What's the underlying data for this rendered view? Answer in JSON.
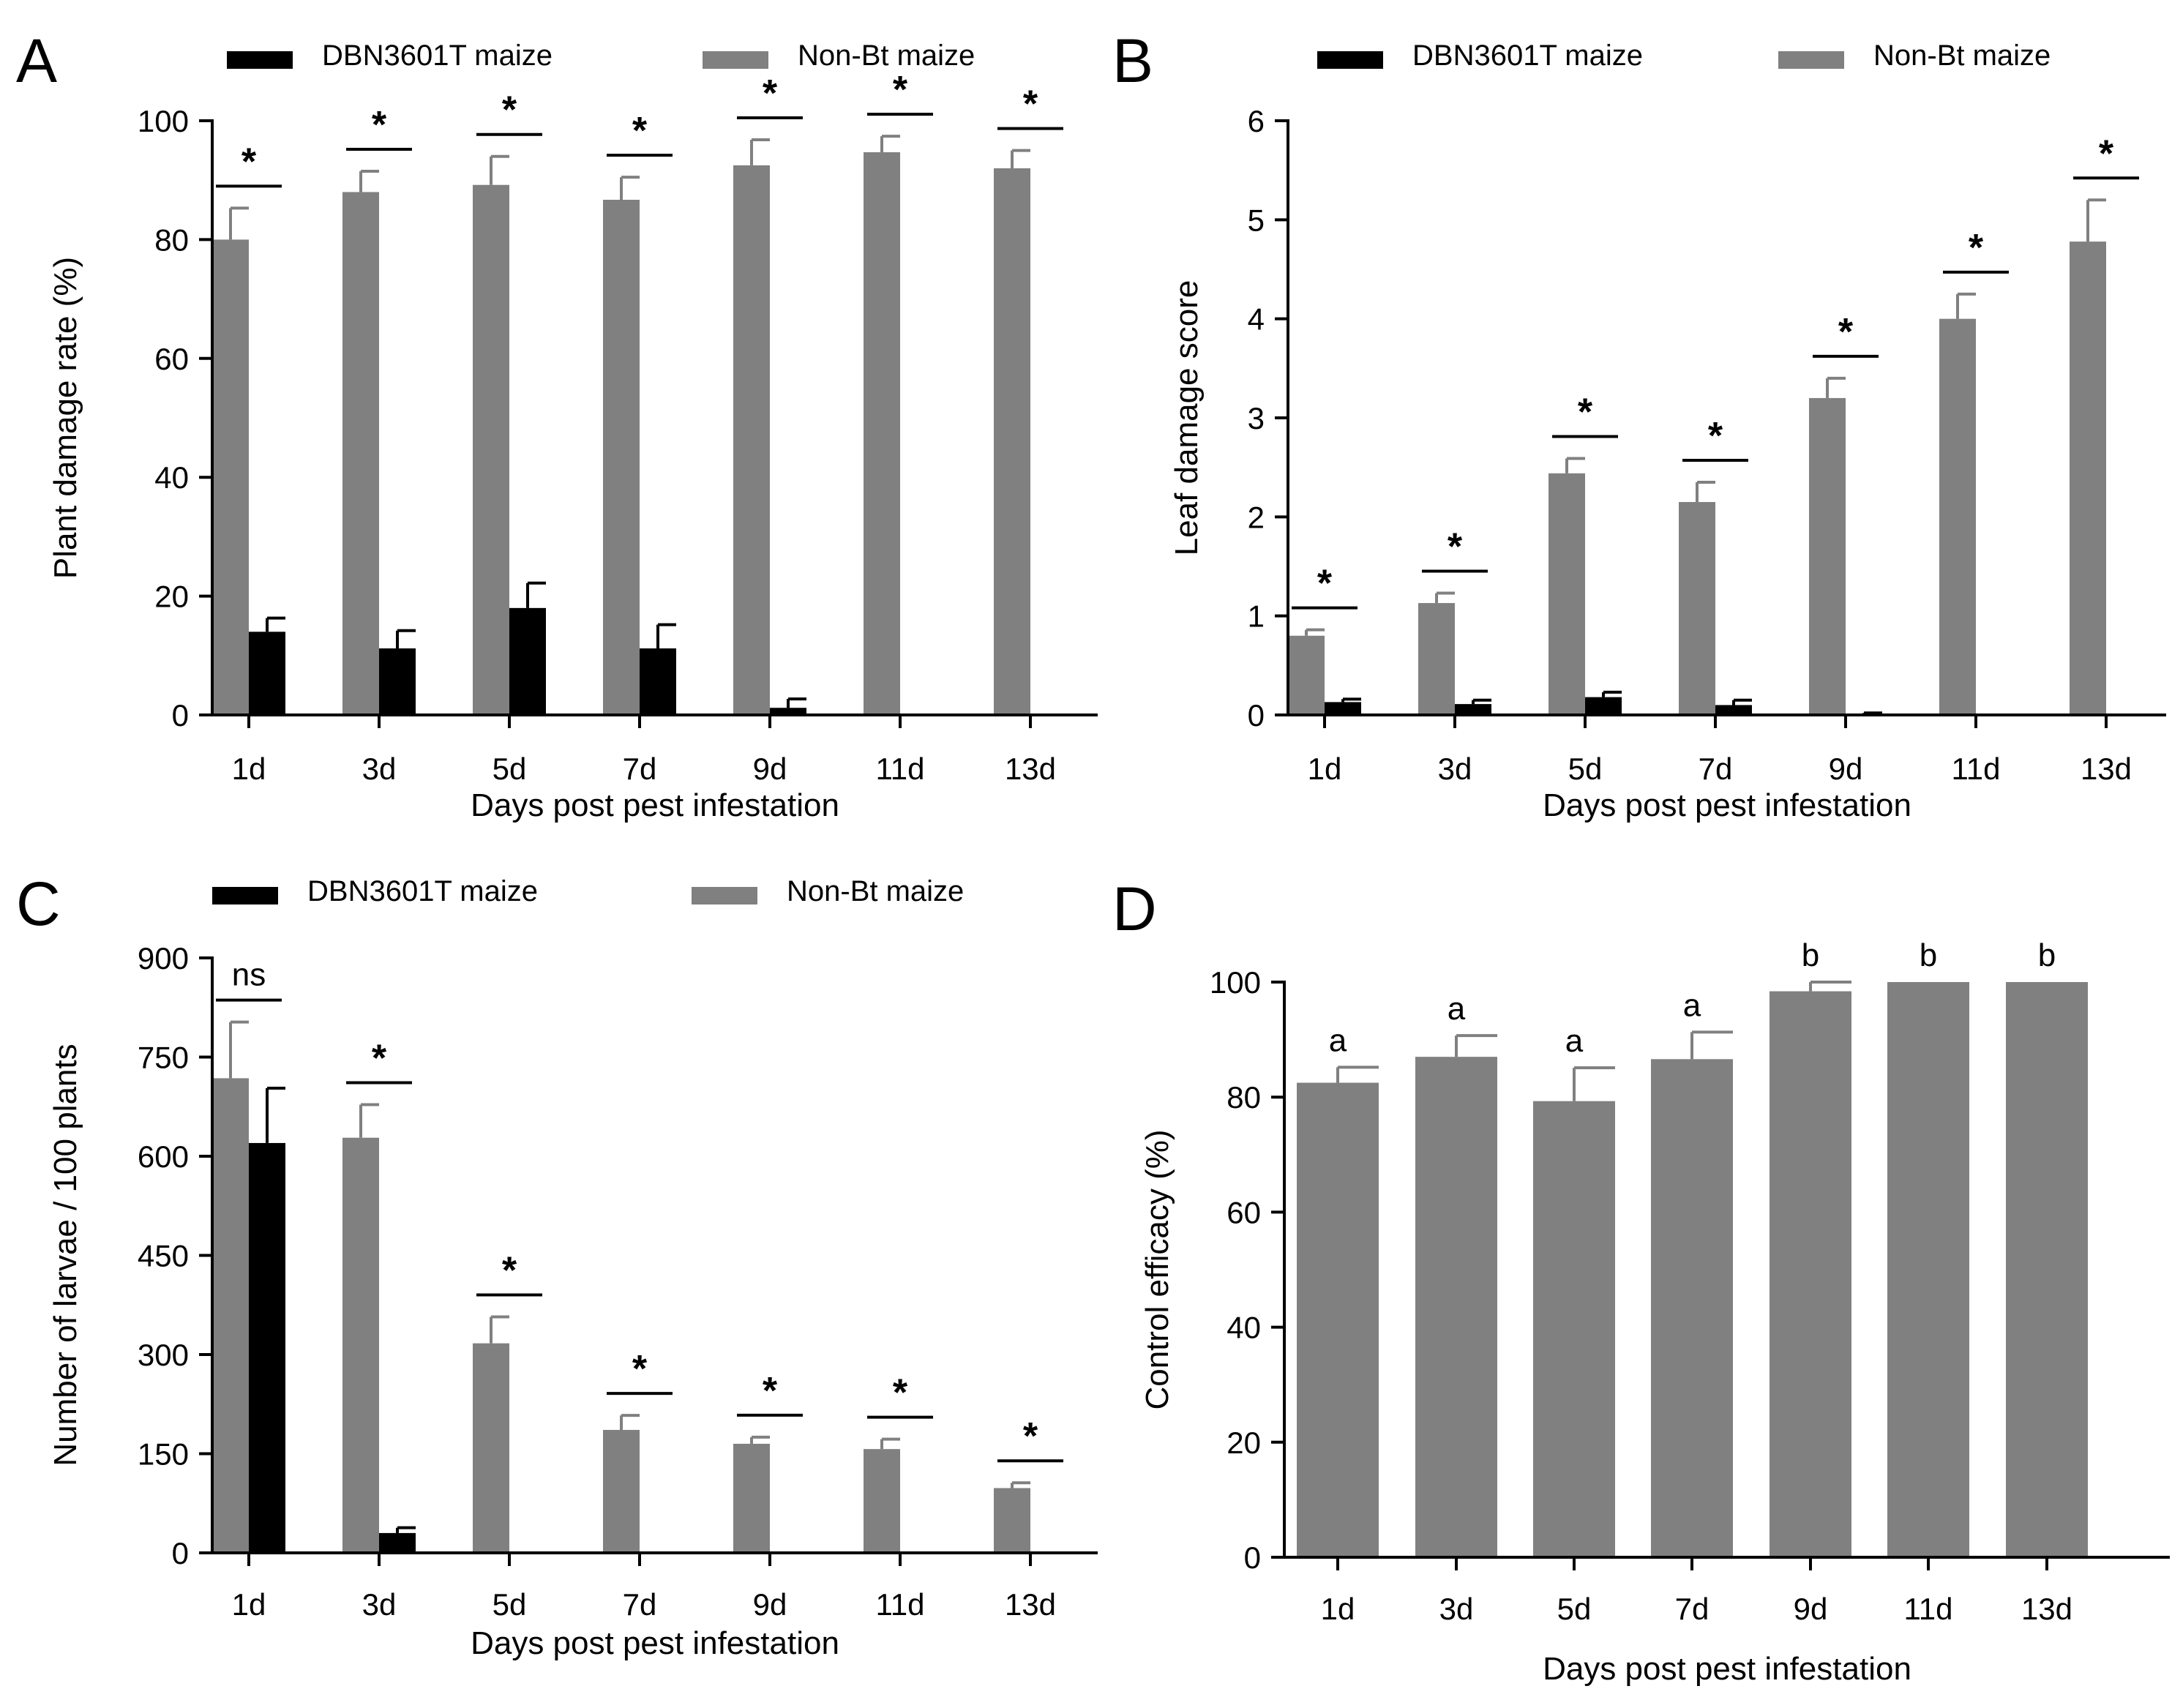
{
  "colors": {
    "transgenic": "#000000",
    "nonbt": "#808080",
    "axis": "#000000"
  },
  "chart_data": [
    {
      "panel": "A",
      "type": "bar",
      "categories": [
        "1d",
        "3d",
        "5d",
        "7d",
        "9d",
        "11d",
        "13d"
      ],
      "legend": [
        "DBN3601T maize",
        "Non-Bt maize"
      ],
      "xlabel": "Days post pest infestation",
      "ylabel": "Plant damage rate (%)",
      "ylim": [
        0,
        100
      ],
      "yticks": [
        "0",
        "20",
        "40",
        "60",
        "80",
        "100"
      ],
      "series": [
        {
          "name": "Non-Bt maize",
          "values": [
            80,
            88,
            89.2,
            86.7,
            92.5,
            94.7,
            92
          ],
          "errors": [
            5.3,
            3.5,
            4.8,
            3.8,
            4.3,
            2.7,
            3
          ]
        },
        {
          "name": "DBN3601T maize",
          "values": [
            14,
            11.2,
            18,
            11.2,
            1.2,
            0,
            0
          ],
          "errors": [
            2.3,
            3,
            4.2,
            4,
            1.5,
            0,
            0
          ]
        }
      ],
      "significance": [
        "*",
        "*",
        "*",
        "*",
        "*",
        "*",
        "*"
      ]
    },
    {
      "panel": "B",
      "type": "bar",
      "categories": [
        "1d",
        "3d",
        "5d",
        "7d",
        "9d",
        "11d",
        "13d"
      ],
      "legend": [
        "DBN3601T maize",
        "Non-Bt maize"
      ],
      "xlabel": "Days post pest infestation",
      "ylabel": "Leaf damage score",
      "ylim": [
        0,
        6
      ],
      "yticks": [
        "0",
        "1",
        "2",
        "3",
        "4",
        "5",
        "6"
      ],
      "series": [
        {
          "name": "Non-Bt maize",
          "values": [
            0.8,
            1.13,
            2.44,
            2.15,
            3.2,
            4,
            4.78
          ],
          "errors": [
            0.06,
            0.1,
            0.15,
            0.2,
            0.2,
            0.25,
            0.42
          ]
        },
        {
          "name": "DBN3601T maize",
          "values": [
            0.13,
            0.11,
            0.18,
            0.1,
            0.01,
            0,
            0
          ],
          "errors": [
            0.03,
            0.04,
            0.05,
            0.05,
            0.01,
            0,
            0
          ]
        }
      ],
      "significance": [
        "*",
        "*",
        "*",
        "*",
        "*",
        "*",
        "*"
      ]
    },
    {
      "panel": "C",
      "type": "bar",
      "categories": [
        "1d",
        "3d",
        "5d",
        "7d",
        "9d",
        "11d",
        "13d"
      ],
      "legend": [
        "DBN3601T maize",
        "Non-Bt maize"
      ],
      "xlabel": "Days post pest infestation",
      "ylabel": "Number of larvae / 100 plants",
      "ylim": [
        0,
        900
      ],
      "yticks": [
        "0",
        "150",
        "300",
        "450",
        "600",
        "750",
        "900"
      ],
      "series": [
        {
          "name": "Non-Bt maize",
          "values": [
            718,
            628,
            317,
            186,
            165,
            157,
            98
          ],
          "errors": [
            85,
            50,
            40,
            22,
            10,
            15,
            8
          ]
        },
        {
          "name": "DBN3601T maize",
          "values": [
            620,
            30,
            0,
            0,
            0,
            0,
            0
          ],
          "errors": [
            83,
            8,
            0,
            0,
            0,
            0,
            0
          ]
        }
      ],
      "significance": [
        "ns",
        "*",
        "*",
        "*",
        "*",
        "*",
        "*"
      ]
    },
    {
      "panel": "D",
      "type": "bar",
      "categories": [
        "1d",
        "3d",
        "5d",
        "7d",
        "9d",
        "11d",
        "13d"
      ],
      "xlabel": "Days post pest infestation",
      "ylabel": "Control efficacy (%)",
      "ylim": [
        0,
        100
      ],
      "yticks": [
        "0",
        "20",
        "40",
        "60",
        "80",
        "100"
      ],
      "series": [
        {
          "name": "Control efficacy",
          "values": [
            82.5,
            87,
            79.3,
            86.6,
            98.4,
            100,
            100
          ],
          "errors": [
            2.7,
            3.7,
            5.8,
            4.7,
            1.6,
            0,
            0
          ]
        }
      ],
      "letters": [
        "a",
        "a",
        "a",
        "a",
        "b",
        "b",
        "b"
      ]
    }
  ]
}
